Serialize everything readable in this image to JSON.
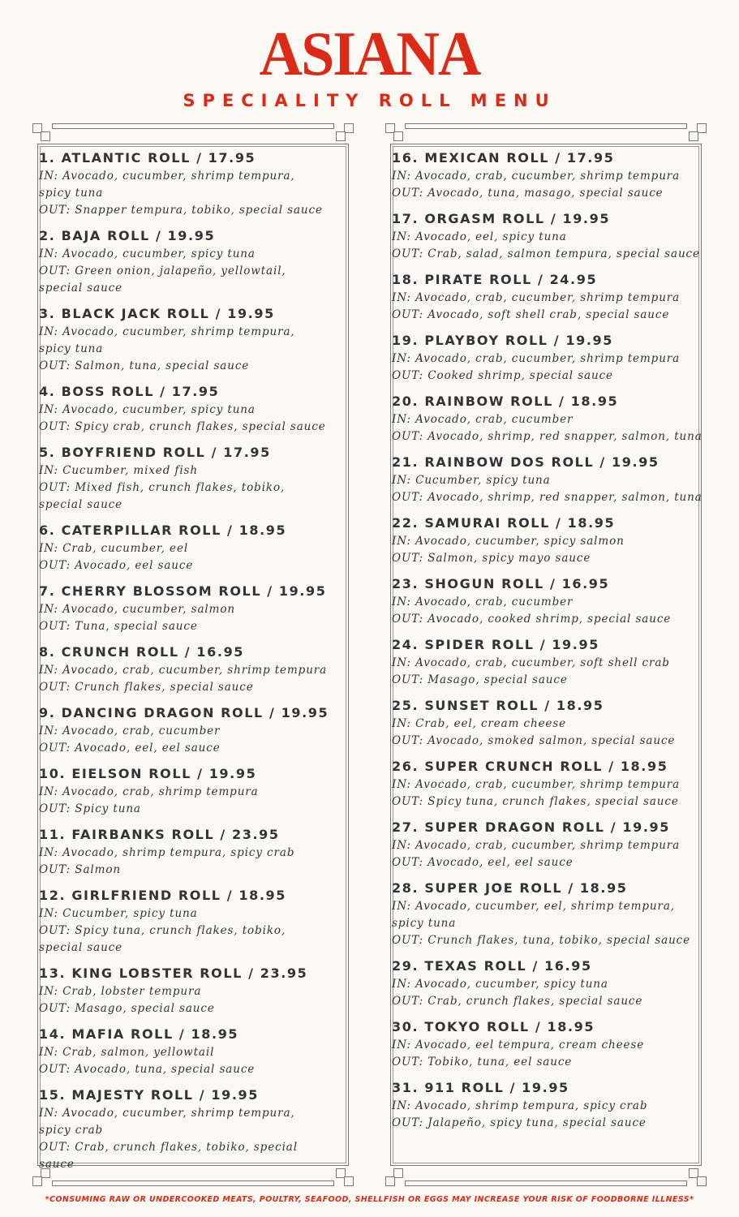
{
  "header": {
    "title": "ASIANA",
    "subtitle": "SPECIALITY ROLL MENU"
  },
  "colors": {
    "accent": "#dc2a17",
    "text": "#333333",
    "background": "#faf9f4",
    "frame": "#777777"
  },
  "columns": [
    [
      {
        "name": "1. ATLANTIC ROLL / 17.95",
        "in": "IN: Avocado, cucumber, shrimp tempura, spicy tuna",
        "out": "OUT: Snapper tempura, tobiko, special sauce"
      },
      {
        "name": "2. BAJA ROLL / 19.95",
        "in": "IN: Avocado, cucumber, spicy tuna",
        "out": "OUT: Green onion, jalapeño, yellowtail, special sauce"
      },
      {
        "name": "3. BLACK JACK ROLL / 19.95",
        "in": "IN: Avocado, cucumber, shrimp tempura, spicy tuna",
        "out": "OUT: Salmon, tuna, special sauce"
      },
      {
        "name": "4. BOSS ROLL / 17.95",
        "in": "IN: Avocado, cucumber, spicy tuna",
        "out": "OUT: Spicy crab, crunch flakes, special sauce"
      },
      {
        "name": "5. BOYFRIEND ROLL / 17.95",
        "in": "IN: Cucumber, mixed fish",
        "out": "OUT: Mixed fish, crunch flakes, tobiko, special sauce"
      },
      {
        "name": "6. CATERPILLAR ROLL / 18.95",
        "in": "IN: Crab, cucumber, eel",
        "out": "OUT: Avocado, eel sauce"
      },
      {
        "name": "7. CHERRY BLOSSOM ROLL / 19.95",
        "in": "IN: Avocado, cucumber, salmon",
        "out": "OUT: Tuna, special sauce"
      },
      {
        "name": "8. CRUNCH ROLL / 16.95",
        "in": "IN: Avocado, crab, cucumber, shrimp tempura",
        "out": "OUT: Crunch flakes, special sauce"
      },
      {
        "name": "9. DANCING DRAGON ROLL / 19.95",
        "in": "IN: Avocado, crab, cucumber",
        "out": "OUT: Avocado, eel, eel sauce"
      },
      {
        "name": "10. EIELSON ROLL / 19.95",
        "in": "IN: Avocado, crab, shrimp tempura",
        "out": "OUT: Spicy tuna"
      },
      {
        "name": "11. FAIRBANKS ROLL / 23.95",
        "in": "IN: Avocado, shrimp tempura, spicy crab",
        "out": "OUT: Salmon"
      },
      {
        "name": "12. GIRLFRIEND ROLL / 18.95",
        "in": "IN: Cucumber, spicy tuna",
        "out": "OUT: Spicy tuna, crunch flakes, tobiko, special sauce"
      },
      {
        "name": "13. KING LOBSTER ROLL / 23.95",
        "in": "IN: Crab, lobster tempura",
        "out": "OUT: Masago, special sauce"
      },
      {
        "name": "14. MAFIA ROLL / 18.95",
        "in": "IN: Crab, salmon, yellowtail",
        "out": "OUT: Avocado, tuna, special sauce"
      },
      {
        "name": "15. MAJESTY ROLL / 19.95",
        "in": "IN: Avocado, cucumber, shrimp tempura, spicy crab",
        "out": "OUT: Crab, crunch flakes, tobiko, special sauce"
      }
    ],
    [
      {
        "name": "16. MEXICAN ROLL / 17.95",
        "in": "IN: Avocado, crab, cucumber, shrimp tempura",
        "out": "OUT: Avocado, tuna, masago, special sauce"
      },
      {
        "name": "17. ORGASM ROLL / 19.95",
        "in": "IN: Avocado, eel, spicy tuna",
        "out": "OUT: Crab, salad, salmon tempura, special sauce"
      },
      {
        "name": "18. PIRATE ROLL / 24.95",
        "in": "IN: Avocado, crab, cucumber, shrimp tempura",
        "out": "OUT: Avocado, soft shell crab, special sauce"
      },
      {
        "name": "19. PLAYBOY ROLL / 19.95",
        "in": "IN: Avocado, crab, cucumber, shrimp tempura",
        "out": "OUT: Cooked shrimp, special sauce"
      },
      {
        "name": "20. RAINBOW ROLL / 18.95",
        "in": "IN: Avocado, crab, cucumber",
        "out": "OUT: Avocado, shrimp, red snapper, salmon, tuna"
      },
      {
        "name": "21. RAINBOW DOS ROLL / 19.95",
        "in": "IN: Cucumber, spicy tuna",
        "out": "OUT: Avocado, shrimp, red snapper, salmon, tuna"
      },
      {
        "name": "22. SAMURAI ROLL / 18.95",
        "in": "IN: Avocado, cucumber, spicy salmon",
        "out": "OUT: Salmon, spicy mayo sauce"
      },
      {
        "name": "23. SHOGUN ROLL / 16.95",
        "in": "IN: Avocado, crab, cucumber",
        "out": "OUT: Avocado, cooked shrimp, special sauce"
      },
      {
        "name": "24. SPIDER ROLL / 19.95",
        "in": "IN: Avocado, crab, cucumber, soft shell crab",
        "out": "OUT: Masago, special sauce"
      },
      {
        "name": "25. SUNSET ROLL / 18.95",
        "in": "IN: Crab, eel, cream cheese",
        "out": "OUT: Avocado, smoked salmon, special sauce"
      },
      {
        "name": "26. SUPER CRUNCH ROLL / 18.95",
        "in": "IN: Avocado, crab, cucumber, shrimp tempura",
        "out": "OUT: Spicy tuna, crunch flakes, special sauce"
      },
      {
        "name": "27. SUPER DRAGON ROLL / 19.95",
        "in": "IN: Avocado, crab, cucumber, shrimp tempura",
        "out": "OUT: Avocado, eel, eel sauce"
      },
      {
        "name": "28. SUPER JOE ROLL / 18.95",
        "in": "IN: Avocado, cucumber, eel, shrimp tempura, spicy tuna",
        "out": "OUT: Crunch flakes, tuna, tobiko, special sauce"
      },
      {
        "name": "29. TEXAS ROLL / 16.95",
        "in": "IN: Avocado, cucumber, spicy tuna",
        "out": "OUT: Crab, crunch flakes, special sauce"
      },
      {
        "name": "30. TOKYO ROLL / 18.95",
        "in": "IN: Avocado, eel tempura, cream cheese",
        "out": "OUT: Tobiko, tuna, eel sauce"
      },
      {
        "name": "31. 911 ROLL / 19.95",
        "in": "IN: Avocado, shrimp tempura, spicy crab",
        "out": "OUT: Jalapeño, spicy tuna, special sauce"
      }
    ]
  ],
  "footer": {
    "notice": "*CONSUMING RAW OR UNDERCOOKED MEATS, POULTRY, SEAFOOD, SHELLFISH OR EGGS MAY INCREASE YOUR RISK OF FOODBORNE ILLNESS*"
  }
}
